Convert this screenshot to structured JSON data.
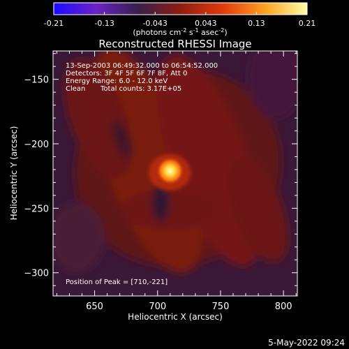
{
  "colorbar": {
    "ticks": [
      "-0.21",
      "-0.13",
      "-0.043",
      "0.043",
      "0.13",
      "0.21"
    ],
    "stops": [
      "#1a0cff",
      "#6a22c8",
      "#36204a",
      "#8e1c10",
      "#e03a0c",
      "#ffa020",
      "#ffffa8"
    ],
    "unit_base": "(photons cm",
    "unit_exp1": "-2",
    "unit_mid1": " s",
    "unit_exp2": "-1",
    "unit_mid2": " asec",
    "unit_exp3": "-2",
    "unit_end": ")"
  },
  "chart_data": {
    "type": "heatmap",
    "title": "Reconstructed RHESSI Image",
    "xlabel": "Heliocentric X (arcsec)",
    "ylabel": "Heliocentric Y (arcsec)",
    "xlim": [
      617,
      811
    ],
    "ylim": [
      -318,
      -128
    ],
    "x_ticks": [
      650,
      700,
      750,
      800
    ],
    "y_ticks": [
      -150,
      -200,
      -250,
      -300
    ],
    "value_range": [
      -0.21,
      0.21
    ],
    "peak": {
      "x": 710,
      "y": -221
    },
    "annotations": [
      "13-Sep-2003 06:49:32.000 to 06:54:52.000",
      "Detectors: 3F 4F 5F 6F 7F 8F, Att 0",
      "Energy Range: 6.0 - 12.0 keV",
      "Clean",
      "Total counts: 3.17E+05",
      "Position of Peak = [710,-221]"
    ]
  },
  "footer": {
    "timestamp": "5-May-2022 09:24"
  }
}
